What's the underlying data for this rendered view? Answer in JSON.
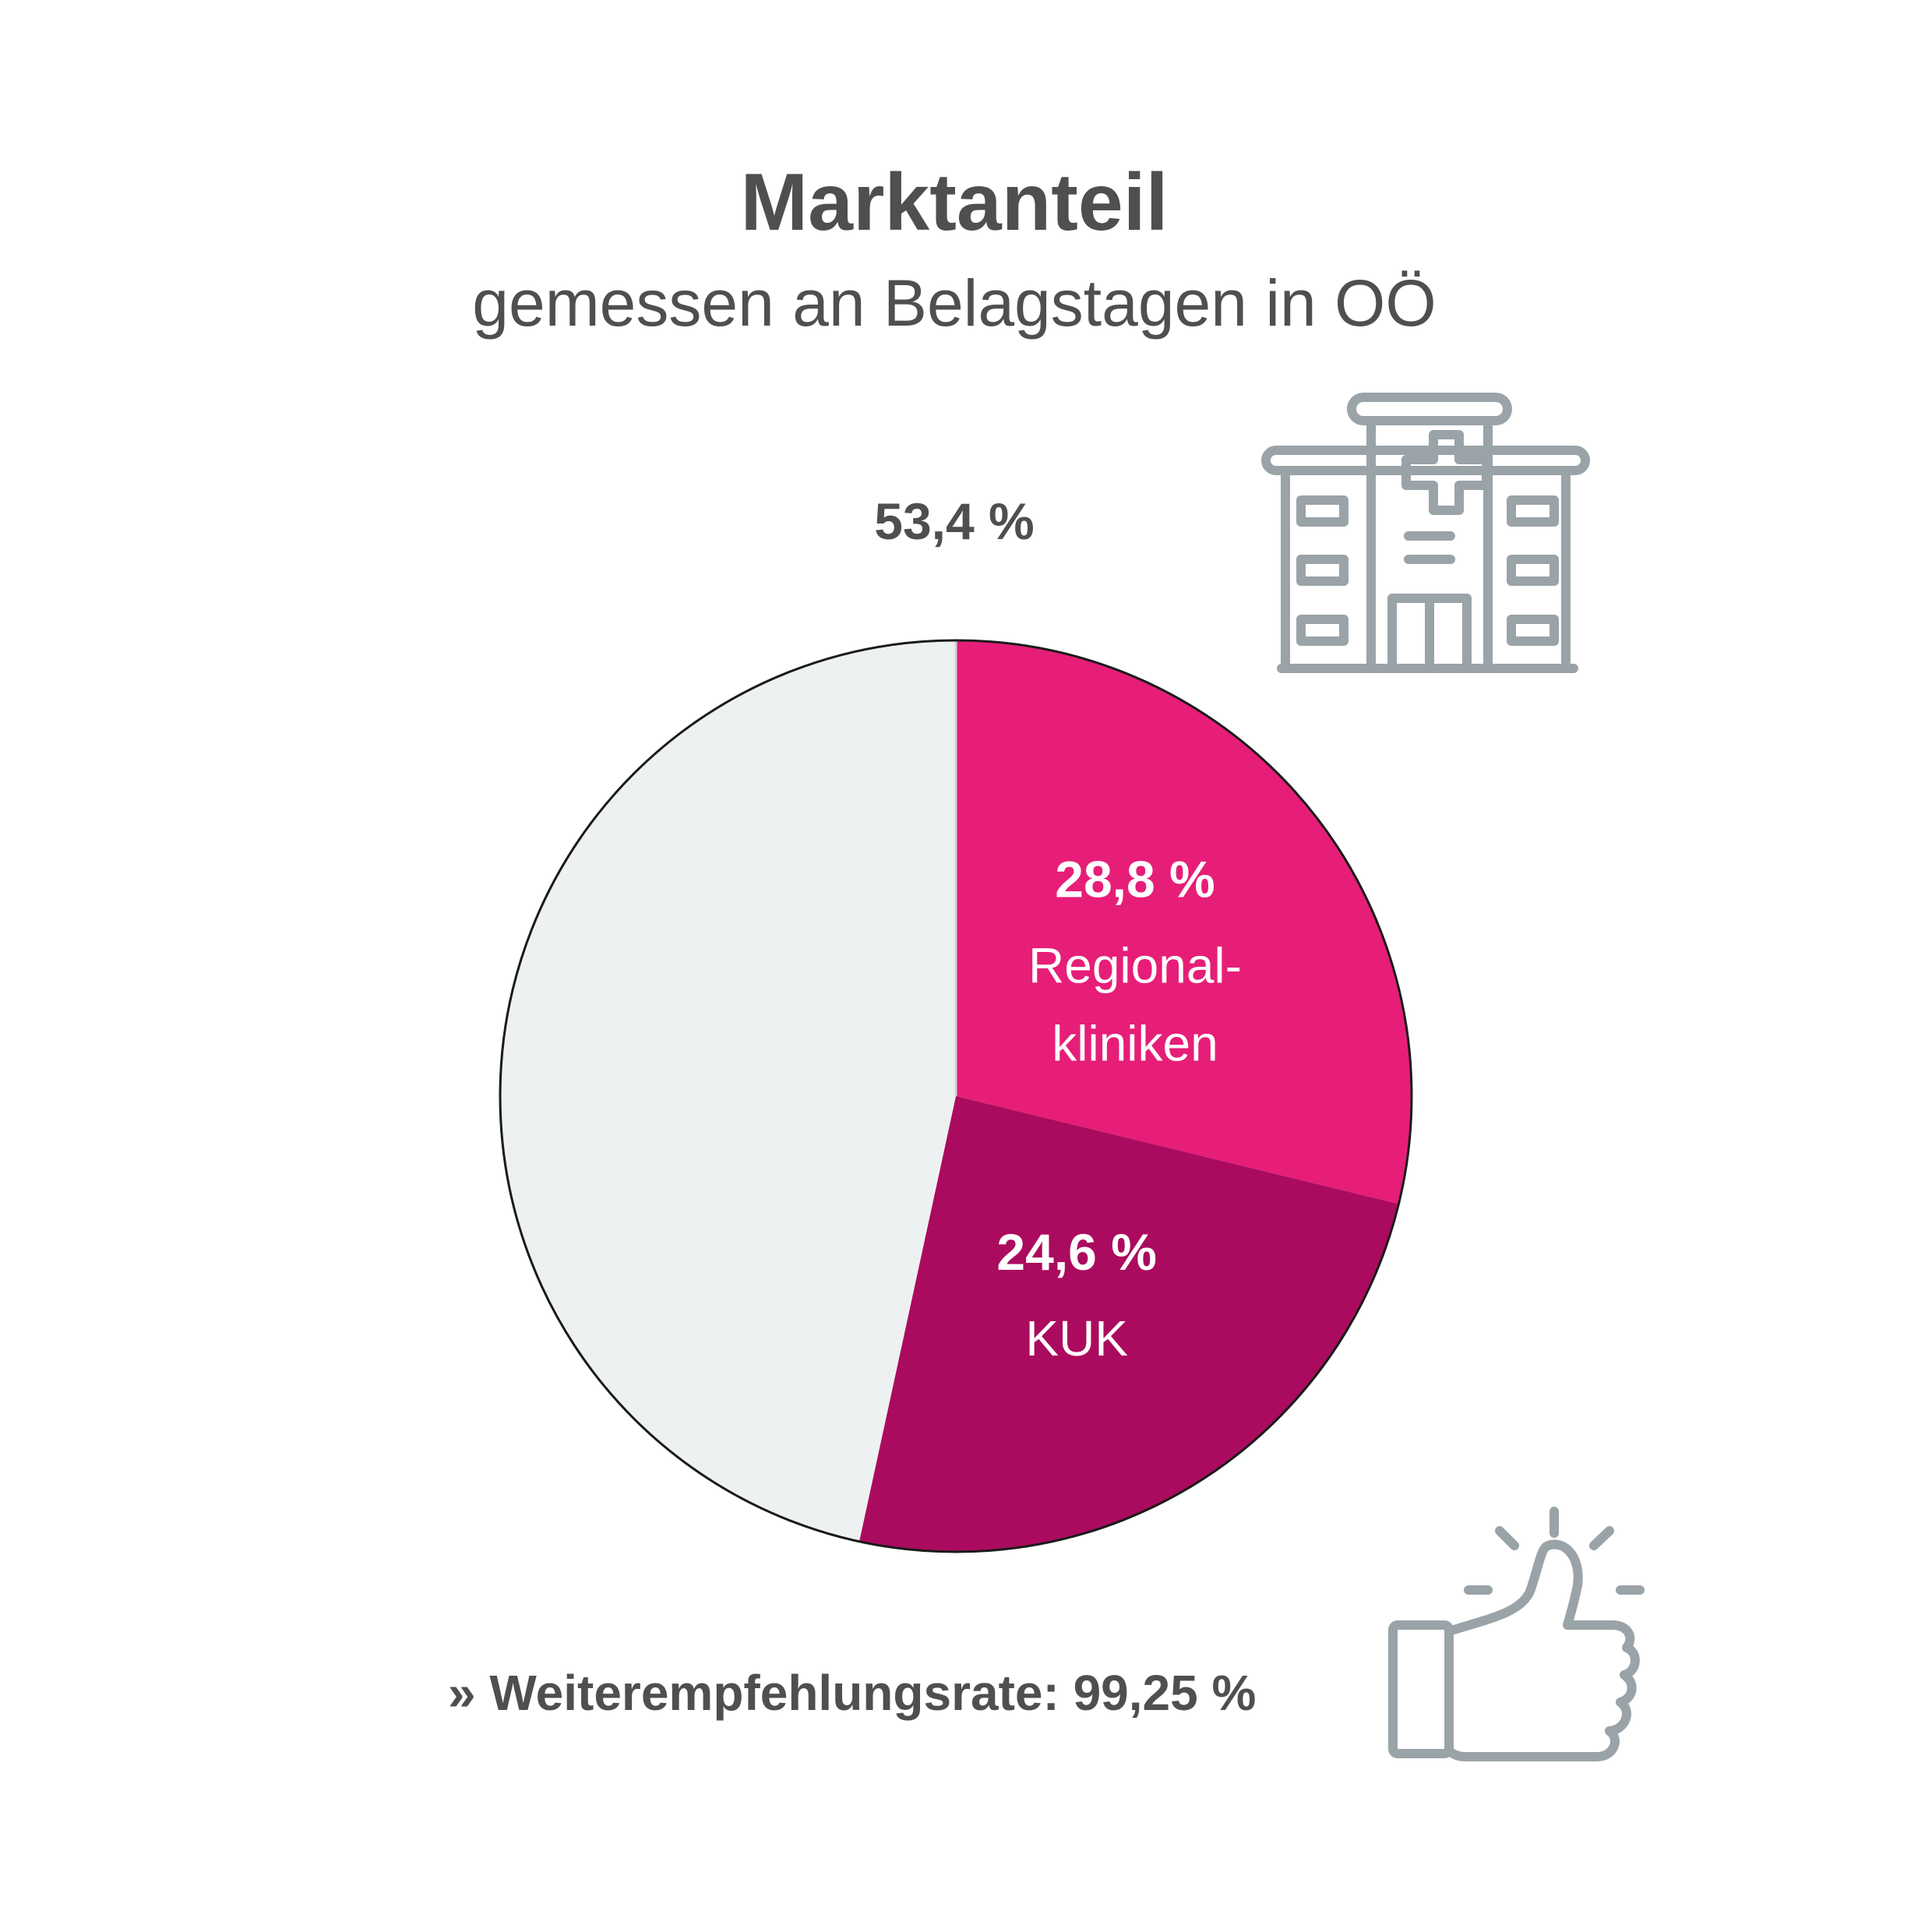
{
  "colors": {
    "text": "#4d4f51",
    "icon": "#9aa3a8",
    "segment_other": "#eef1f2",
    "segment_regional": "#e61e78",
    "segment_kuk": "#ab0b5e"
  },
  "icons": [
    "hospital-icon",
    "thumbs-up-icon"
  ],
  "chart_data": {
    "type": "pie",
    "title": "Marktanteil",
    "subtitle": "gemessen an Belagstagen in OÖ",
    "slices": [
      {
        "value": 28.8,
        "value_label": "28,8 %",
        "name_lines": [
          "Regional-",
          "kliniken"
        ],
        "color": "#e61e78"
      },
      {
        "value": 24.6,
        "value_label": "24,6 %",
        "name_lines": [
          "KUK"
        ],
        "color": "#ab0b5e"
      },
      {
        "value": 46.6,
        "value_label": "",
        "name_lines": [],
        "color": "#eef1f2"
      }
    ],
    "callout": {
      "label": "53,4 %",
      "represents": "Regional-kliniken + KUK"
    }
  },
  "footer": {
    "text": "» Weiterempfehlungsrate: 99,25 %"
  }
}
